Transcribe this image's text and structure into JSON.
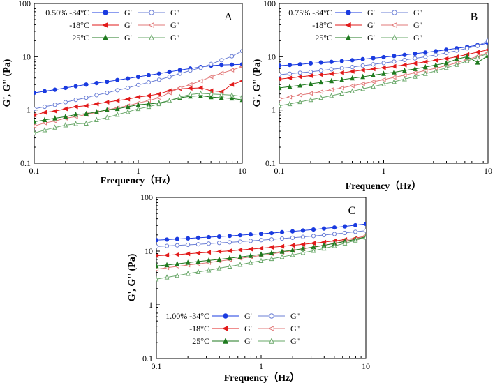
{
  "chart_data": [
    {
      "type": "line",
      "panel": "A",
      "concentration": "0.50%",
      "xlabel": "Frequency（Hz）",
      "ylabel": "G', G'' (Pa)",
      "xscale": "log",
      "yscale": "log",
      "xlim": [
        0.1,
        10
      ],
      "ylim": [
        0.1,
        100
      ],
      "xticks": [
        "0.1",
        "1",
        "10"
      ],
      "yticks": [
        "0.1",
        "1",
        "10",
        "100"
      ],
      "legend_position": "top-left",
      "series": [
        {
          "temp": "-34°C",
          "modulus": "G'",
          "color": "#1a3be0",
          "marker": "circle",
          "filled": true,
          "x": [
            0.1,
            0.126,
            0.158,
            0.2,
            0.251,
            0.316,
            0.398,
            0.501,
            0.631,
            0.794,
            1,
            1.259,
            1.585,
            1.995,
            2.512,
            3.162,
            3.981,
            5.012,
            6.31,
            7.943,
            10
          ],
          "y": [
            2.1,
            2.25,
            2.4,
            2.6,
            2.8,
            3,
            3.2,
            3.4,
            3.65,
            3.9,
            4.2,
            4.5,
            4.8,
            5.2,
            5.6,
            6,
            6.4,
            6.8,
            7,
            7.1,
            7.2
          ]
        },
        {
          "temp": "-34°C",
          "modulus": "G''",
          "color": "#6b7fd6",
          "marker": "circle",
          "filled": false,
          "x": [
            0.1,
            0.126,
            0.158,
            0.2,
            0.251,
            0.316,
            0.398,
            0.501,
            0.631,
            0.794,
            1,
            1.259,
            1.585,
            1.995,
            2.512,
            3.162,
            3.981,
            5.012,
            6.31,
            7.943,
            10
          ],
          "y": [
            1.05,
            1.15,
            1.25,
            1.4,
            1.55,
            1.7,
            1.9,
            2.1,
            2.35,
            2.6,
            2.95,
            3.3,
            3.7,
            4.2,
            4.8,
            5.5,
            6.2,
            7.3,
            8.6,
            10.2,
            12.8
          ]
        },
        {
          "temp": "-18°C",
          "modulus": "G'",
          "color": "#e21b1b",
          "marker": "triangle-left",
          "filled": true,
          "x": [
            0.1,
            0.126,
            0.158,
            0.2,
            0.251,
            0.316,
            0.398,
            0.501,
            0.631,
            0.794,
            1,
            1.259,
            1.585,
            1.995,
            2.512,
            3.162,
            3.981,
            5.012,
            6.31,
            7.943,
            10
          ],
          "y": [
            0.8,
            0.9,
            0.95,
            1.05,
            1.15,
            1.2,
            1.3,
            1.4,
            1.5,
            1.6,
            1.75,
            1.85,
            2,
            2.3,
            2.5,
            2.55,
            2.6,
            2.3,
            2.2,
            3,
            3.5
          ]
        },
        {
          "temp": "-18°C",
          "modulus": "G''",
          "color": "#e27a7a",
          "marker": "triangle-left",
          "filled": false,
          "x": [
            0.1,
            0.126,
            0.158,
            0.2,
            0.251,
            0.316,
            0.398,
            0.501,
            0.631,
            0.794,
            1,
            1.259,
            1.585,
            1.995,
            2.512,
            3.162,
            3.981,
            5.012,
            6.31,
            7.943,
            10
          ],
          "y": [
            0.5,
            0.57,
            0.62,
            0.7,
            0.75,
            0.82,
            0.9,
            1,
            1.1,
            1.2,
            1.35,
            1.5,
            1.7,
            2.1,
            2.6,
            3,
            3.5,
            4.2,
            4.9,
            5.6,
            6.5
          ]
        },
        {
          "temp": "25°C",
          "modulus": "G'",
          "color": "#1f7a1f",
          "marker": "triangle-up",
          "filled": true,
          "x": [
            0.1,
            0.126,
            0.158,
            0.2,
            0.251,
            0.316,
            0.398,
            0.501,
            0.631,
            0.794,
            1,
            1.259,
            1.585,
            1.995,
            2.512,
            3.162,
            3.981,
            5.012,
            6.31,
            7.943,
            10
          ],
          "y": [
            0.6,
            0.65,
            0.7,
            0.75,
            0.82,
            0.85,
            0.92,
            1,
            1.05,
            1.15,
            1.25,
            1.3,
            1.35,
            1.5,
            1.7,
            1.8,
            1.85,
            1.75,
            1.7,
            1.65,
            1.55
          ]
        },
        {
          "temp": "25°C",
          "modulus": "G''",
          "color": "#6aa86a",
          "marker": "triangle-up",
          "filled": false,
          "x": [
            0.1,
            0.126,
            0.158,
            0.2,
            0.251,
            0.316,
            0.398,
            0.501,
            0.631,
            0.794,
            1,
            1.259,
            1.585,
            1.995,
            2.512,
            3.162,
            3.981,
            5.012,
            6.31,
            7.943,
            10
          ],
          "y": [
            0.37,
            0.42,
            0.47,
            0.52,
            0.55,
            0.56,
            0.65,
            0.72,
            0.82,
            0.92,
            1.05,
            1.15,
            1.3,
            1.5,
            1.75,
            1.95,
            2.05,
            2.0,
            1.95,
            1.9,
            1.8
          ]
        }
      ]
    },
    {
      "type": "line",
      "panel": "B",
      "concentration": "0.75%",
      "xlabel": "Frequency（Hz）",
      "ylabel": "G', G'' (Pa)",
      "xscale": "log",
      "yscale": "log",
      "xlim": [
        0.1,
        10
      ],
      "ylim": [
        0.1,
        100
      ],
      "xticks": [
        "0.1",
        "1",
        "10"
      ],
      "yticks": [
        "0.1",
        "1",
        "10",
        "100"
      ],
      "legend_position": "top-left",
      "series": [
        {
          "temp": "-34°C",
          "modulus": "G'",
          "color": "#1a3be0",
          "marker": "circle",
          "filled": true,
          "x": [
            0.1,
            0.126,
            0.158,
            0.2,
            0.251,
            0.316,
            0.398,
            0.501,
            0.631,
            0.794,
            1,
            1.259,
            1.585,
            1.995,
            2.512,
            3.162,
            3.981,
            5.012,
            6.31,
            7.943,
            10
          ],
          "y": [
            6.8,
            7,
            7.2,
            7.5,
            7.8,
            8,
            8.3,
            8.6,
            9,
            9.4,
            9.8,
            10.3,
            10.8,
            11.4,
            12,
            12.7,
            13.5,
            14.4,
            15.3,
            16.5,
            18
          ]
        },
        {
          "temp": "-34°C",
          "modulus": "G''",
          "color": "#6b7fd6",
          "marker": "circle",
          "filled": false,
          "x": [
            0.1,
            0.126,
            0.158,
            0.2,
            0.251,
            0.316,
            0.398,
            0.501,
            0.631,
            0.794,
            1,
            1.259,
            1.585,
            1.995,
            2.512,
            3.162,
            3.981,
            5.012,
            6.31,
            7.943,
            10
          ],
          "y": [
            4.6,
            4.8,
            5,
            5.2,
            5.5,
            5.8,
            6.1,
            6.4,
            6.8,
            7.2,
            7.6,
            8.1,
            8.7,
            9.3,
            10,
            10.8,
            11.8,
            13,
            14.4,
            16,
            20
          ]
        },
        {
          "temp": "-18°C",
          "modulus": "G'",
          "color": "#e21b1b",
          "marker": "triangle-left",
          "filled": true,
          "x": [
            0.1,
            0.126,
            0.158,
            0.2,
            0.251,
            0.316,
            0.398,
            0.501,
            0.631,
            0.794,
            1,
            1.259,
            1.585,
            1.995,
            2.512,
            3.162,
            3.981,
            5.012,
            6.31,
            7.943,
            10
          ],
          "y": [
            3.8,
            4,
            4.2,
            4.4,
            4.6,
            4.8,
            5,
            5.3,
            5.6,
            5.9,
            6.2,
            6.6,
            7,
            7.5,
            8,
            8.6,
            9.2,
            10,
            11,
            12.2,
            13.5
          ]
        },
        {
          "temp": "-18°C",
          "modulus": "G''",
          "color": "#e27a7a",
          "marker": "triangle-left",
          "filled": false,
          "x": [
            0.1,
            0.126,
            0.158,
            0.2,
            0.251,
            0.316,
            0.398,
            0.501,
            0.631,
            0.794,
            1,
            1.259,
            1.585,
            1.995,
            2.512,
            3.162,
            3.981,
            5.012,
            6.31,
            7.943,
            10
          ],
          "y": [
            1.6,
            1.75,
            1.9,
            2.05,
            2.2,
            2.4,
            2.6,
            2.85,
            3.1,
            3.4,
            3.7,
            4.1,
            4.5,
            5,
            5.5,
            6.1,
            6.8,
            7.7,
            8.8,
            10.2,
            12
          ]
        },
        {
          "temp": "25°C",
          "modulus": "G'",
          "color": "#1f7a1f",
          "marker": "triangle-up",
          "filled": true,
          "x": [
            0.1,
            0.126,
            0.158,
            0.2,
            0.251,
            0.316,
            0.398,
            0.501,
            0.631,
            0.794,
            1,
            1.259,
            1.585,
            1.995,
            2.512,
            3.162,
            3.981,
            5.012,
            6.31,
            7.943,
            10
          ],
          "y": [
            2.6,
            2.75,
            2.9,
            3.1,
            3.3,
            3.5,
            3.7,
            3.95,
            4.2,
            4.5,
            4.8,
            5.1,
            5.5,
            5.9,
            6.4,
            7,
            7.6,
            9,
            10,
            7.8,
            10.5
          ]
        },
        {
          "temp": "25°C",
          "modulus": "G''",
          "color": "#6aa86a",
          "marker": "triangle-up",
          "filled": false,
          "x": [
            0.1,
            0.126,
            0.158,
            0.2,
            0.251,
            0.316,
            0.398,
            0.501,
            0.631,
            0.794,
            1,
            1.259,
            1.585,
            1.995,
            2.512,
            3.162,
            3.981,
            5.012,
            6.31,
            7.943,
            10
          ],
          "y": [
            1.2,
            1.3,
            1.42,
            1.55,
            1.7,
            1.85,
            2.05,
            2.25,
            2.5,
            2.75,
            3.05,
            3.4,
            3.8,
            4.25,
            4.8,
            5.4,
            6.2,
            7.1,
            8.3,
            9.8,
            11.5
          ]
        }
      ]
    },
    {
      "type": "line",
      "panel": "C",
      "concentration": "1.00%",
      "xlabel": "Frequency（Hz）",
      "ylabel": "G', G'' (Pa)",
      "xscale": "log",
      "yscale": "log",
      "xlim": [
        0.1,
        10
      ],
      "ylim": [
        0.1,
        100
      ],
      "xticks": [
        "0.1",
        "1",
        "10"
      ],
      "yticks": [
        "0.1",
        "1",
        "10",
        "100"
      ],
      "legend_position": "bottom-left",
      "series": [
        {
          "temp": "-34°C",
          "modulus": "G'",
          "color": "#1a3be0",
          "marker": "circle",
          "filled": true,
          "x": [
            0.1,
            0.126,
            0.158,
            0.2,
            0.251,
            0.316,
            0.398,
            0.501,
            0.631,
            0.794,
            1,
            1.259,
            1.585,
            1.995,
            2.512,
            3.162,
            3.981,
            5.012,
            6.31,
            7.943,
            10
          ],
          "y": [
            16,
            16.4,
            16.8,
            17.2,
            17.7,
            18.2,
            18.7,
            19.2,
            19.8,
            20.4,
            21,
            21.7,
            22.5,
            23.3,
            24.2,
            25.2,
            26.3,
            27.5,
            28.8,
            30.3,
            32
          ]
        },
        {
          "temp": "-34°C",
          "modulus": "G''",
          "color": "#6b7fd6",
          "marker": "circle",
          "filled": false,
          "x": [
            0.1,
            0.126,
            0.158,
            0.2,
            0.251,
            0.316,
            0.398,
            0.501,
            0.631,
            0.794,
            1,
            1.259,
            1.585,
            1.995,
            2.512,
            3.162,
            3.981,
            5.012,
            6.31,
            7.943,
            10
          ],
          "y": [
            12.2,
            12.5,
            12.8,
            13.1,
            13.4,
            13.8,
            14.2,
            14.6,
            15,
            15.5,
            16,
            16.5,
            17.1,
            17.7,
            18.4,
            19.1,
            19.9,
            20.8,
            21.8,
            22.9,
            24
          ]
        },
        {
          "temp": "-18°C",
          "modulus": "G'",
          "color": "#e21b1b",
          "marker": "triangle-left",
          "filled": true,
          "x": [
            0.1,
            0.126,
            0.158,
            0.2,
            0.251,
            0.316,
            0.398,
            0.501,
            0.631,
            0.794,
            1,
            1.259,
            1.585,
            1.995,
            2.512,
            3.162,
            3.981,
            5.012,
            6.31,
            7.943,
            10
          ],
          "y": [
            8.2,
            8.4,
            8.6,
            8.9,
            9.2,
            9.5,
            9.8,
            10.1,
            10.5,
            10.9,
            11.3,
            11.8,
            12.3,
            12.8,
            13.4,
            14,
            14.7,
            15.5,
            16.4,
            17.4,
            19
          ]
        },
        {
          "temp": "-18°C",
          "modulus": "G''",
          "color": "#e27a7a",
          "marker": "triangle-left",
          "filled": false,
          "x": [
            0.1,
            0.126,
            0.158,
            0.2,
            0.251,
            0.316,
            0.398,
            0.501,
            0.631,
            0.794,
            1,
            1.259,
            1.585,
            1.995,
            2.512,
            3.162,
            3.981,
            5.012,
            6.31,
            7.943,
            10
          ],
          "y": [
            4.6,
            4.9,
            5.2,
            5.5,
            5.8,
            6.1,
            6.5,
            6.9,
            7.3,
            7.8,
            8.3,
            8.9,
            9.5,
            10.2,
            11,
            11.8,
            12.8,
            14,
            15.3,
            16.8,
            19.5
          ]
        },
        {
          "temp": "25°C",
          "modulus": "G'",
          "color": "#1f7a1f",
          "marker": "triangle-up",
          "filled": true,
          "x": [
            0.1,
            0.126,
            0.158,
            0.2,
            0.251,
            0.316,
            0.398,
            0.501,
            0.631,
            0.794,
            1,
            1.259,
            1.585,
            1.995,
            2.512,
            3.162,
            3.981,
            5.012,
            6.31,
            7.943,
            10
          ],
          "y": [
            5.3,
            5.5,
            5.8,
            6.1,
            6.4,
            6.7,
            7,
            7.4,
            7.8,
            8.2,
            8.7,
            9.2,
            9.8,
            10.4,
            11.1,
            11.9,
            12.8,
            13.9,
            15.1,
            16.5,
            18.5
          ]
        },
        {
          "temp": "25°C",
          "modulus": "G''",
          "color": "#6aa86a",
          "marker": "triangle-up",
          "filled": false,
          "x": [
            0.1,
            0.126,
            0.158,
            0.2,
            0.251,
            0.316,
            0.398,
            0.501,
            0.631,
            0.794,
            1,
            1.259,
            1.585,
            1.995,
            2.512,
            3.162,
            3.981,
            5.012,
            6.31,
            7.943,
            10
          ],
          "y": [
            3,
            3.25,
            3.5,
            3.8,
            4.1,
            4.4,
            4.8,
            5.2,
            5.6,
            6.1,
            6.6,
            7.2,
            7.8,
            8.5,
            9.3,
            10.2,
            11.2,
            12.5,
            14,
            15.8,
            18
          ]
        }
      ]
    }
  ]
}
